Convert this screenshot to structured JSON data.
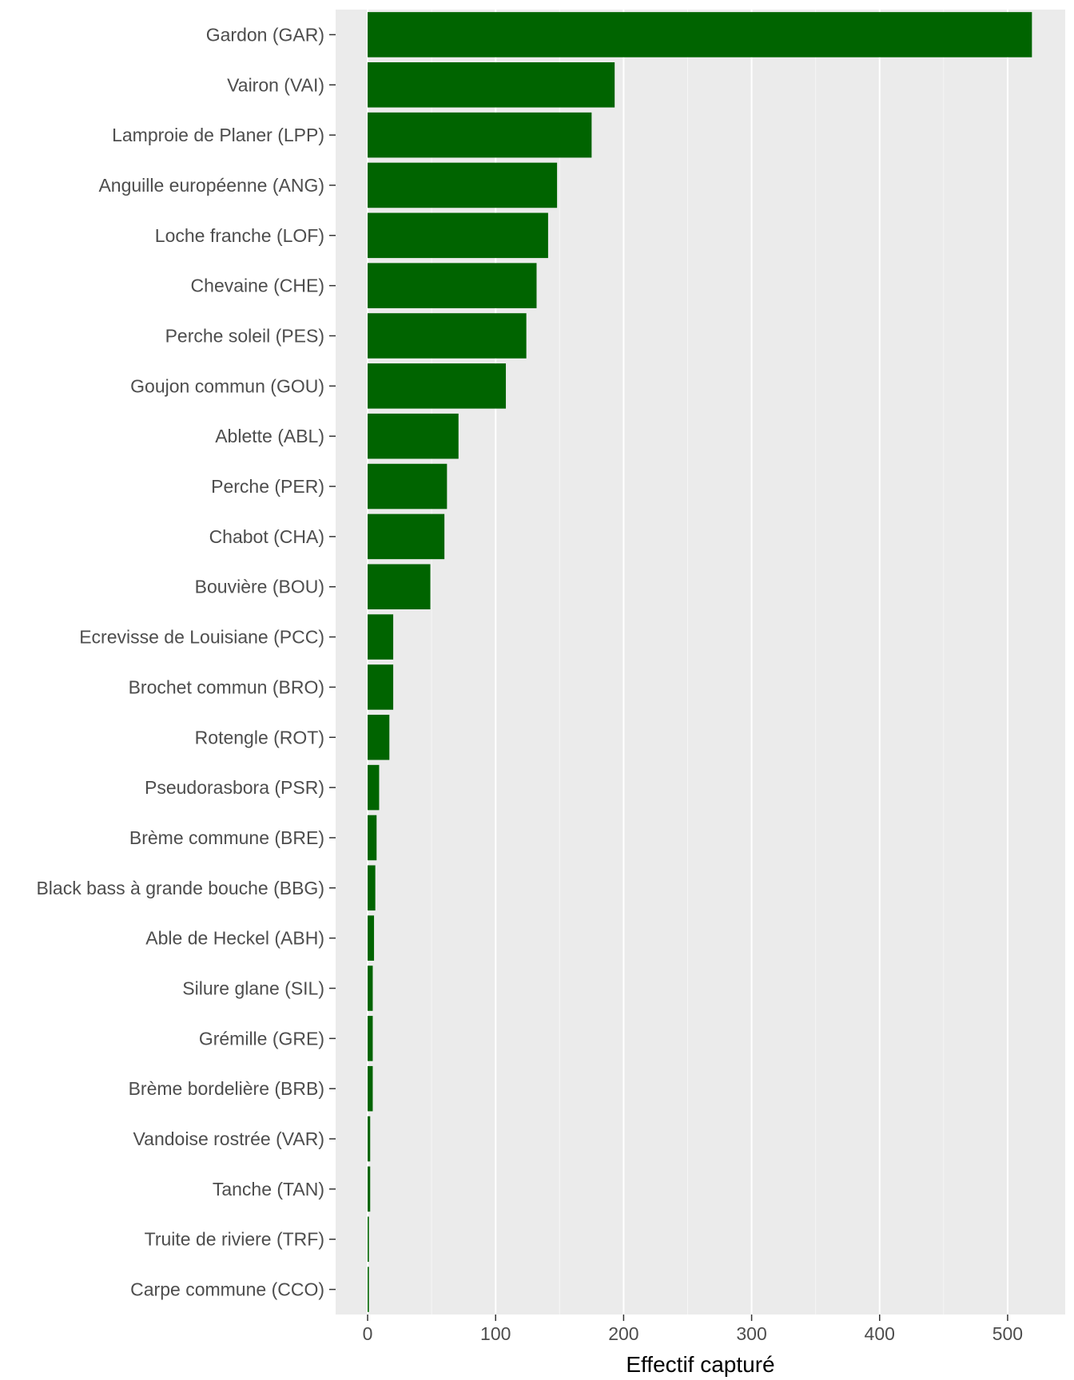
{
  "chart_data": {
    "type": "bar",
    "orientation": "horizontal",
    "title": "",
    "xlabel": "Effectif capturé",
    "ylabel": "",
    "xlim": [
      -25,
      545
    ],
    "x_ticks": [
      0,
      100,
      200,
      300,
      400,
      500
    ],
    "x_tick_labels": [
      "0",
      "100",
      "200",
      "300",
      "400",
      "500"
    ],
    "grid": true,
    "legend": "none",
    "categories": [
      "Gardon (GAR)",
      "Vairon (VAI)",
      "Lamproie de Planer (LPP)",
      "Anguille européenne (ANG)",
      "Loche franche (LOF)",
      "Chevaine (CHE)",
      "Perche soleil (PES)",
      "Goujon commun (GOU)",
      "Ablette (ABL)",
      "Perche (PER)",
      "Chabot (CHA)",
      "Bouvière (BOU)",
      "Ecrevisse de Louisiane (PCC)",
      "Brochet commun (BRO)",
      "Rotengle (ROT)",
      "Pseudorasbora (PSR)",
      "Brème commune (BRE)",
      "Black bass à grande bouche (BBG)",
      "Able de Heckel (ABH)",
      "Silure glane (SIL)",
      "Grémille (GRE)",
      "Brème bordelière (BRB)",
      "Vandoise rostrée (VAR)",
      "Tanche (TAN)",
      "Truite de riviere (TRF)",
      "Carpe commune (CCO)"
    ],
    "values": [
      519,
      193,
      175,
      148,
      141,
      132,
      124,
      108,
      71,
      62,
      60,
      49,
      20,
      20,
      17,
      9,
      7,
      6,
      5,
      4,
      4,
      4,
      2,
      2,
      1,
      1
    ],
    "colors": {
      "bar": "#006400",
      "panel_background": "#ebebeb",
      "grid_major": "#ffffff",
      "grid_minor": "#f6f6f6",
      "tick_text": "#4d4d4d",
      "tick_mark": "#333333",
      "axis_title": "#000000"
    }
  }
}
